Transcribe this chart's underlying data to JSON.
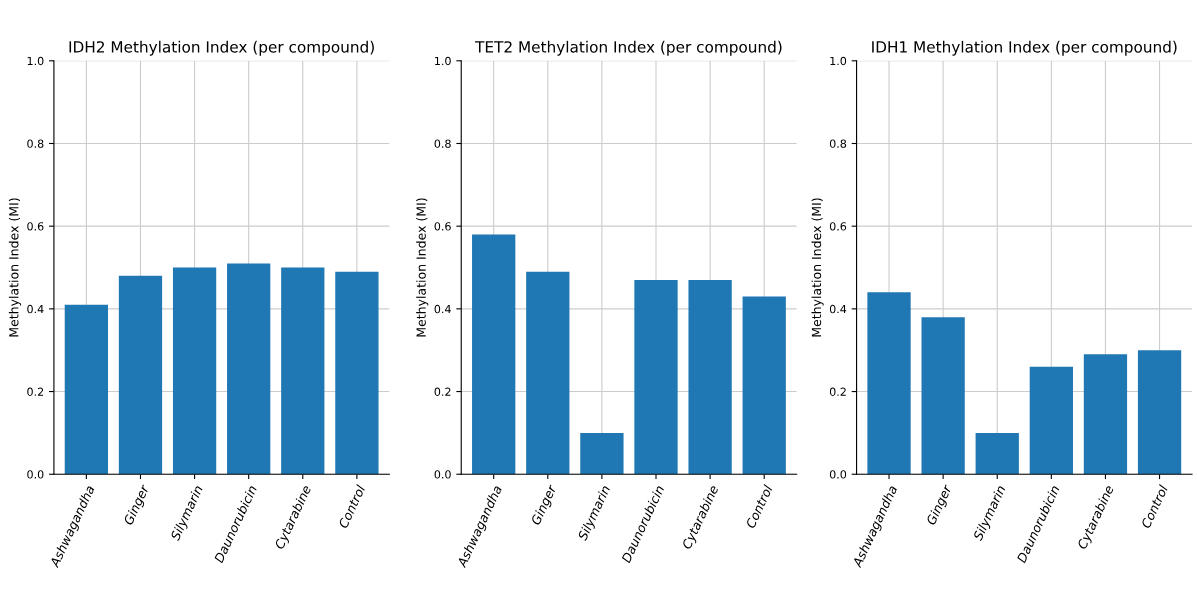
{
  "chart_data": [
    {
      "type": "bar",
      "title": "IDH2 Methylation Index (per compound)",
      "ylabel": "Methylation Index (MI)",
      "categories": [
        "Ashwagandha",
        "Ginger",
        "Silymarin",
        "Daunorubicin",
        "Cytarabine",
        "Control"
      ],
      "values": [
        0.41,
        0.48,
        0.5,
        0.51,
        0.5,
        0.49
      ],
      "color": "#1f77b4",
      "ylim": [
        0,
        1
      ],
      "yticks": [
        {
          "value": 0,
          "label": "0.0"
        },
        {
          "value": 0.2,
          "label": "0.2"
        },
        {
          "value": 0.4,
          "label": "0.4"
        },
        {
          "value": 0.6,
          "label": "0.6"
        },
        {
          "value": 0.8,
          "label": "0.8"
        },
        {
          "value": 1,
          "label": "1.0"
        }
      ],
      "grid": true
    },
    {
      "type": "bar",
      "title": "TET2 Methylation Index (per compound)",
      "ylabel": "Methylation Index (MI)",
      "categories": [
        "Ashwagandha",
        "Ginger",
        "Silymarin",
        "Daunorubicin",
        "Cytarabine",
        "Control"
      ],
      "values": [
        0.58,
        0.49,
        0.1,
        0.47,
        0.47,
        0.43
      ],
      "color": "#1f77b4",
      "ylim": [
        0,
        1
      ],
      "yticks": [
        {
          "value": 0,
          "label": "0.0"
        },
        {
          "value": 0.2,
          "label": "0.2"
        },
        {
          "value": 0.4,
          "label": "0.4"
        },
        {
          "value": 0.6,
          "label": "0.6"
        },
        {
          "value": 0.8,
          "label": "0.8"
        },
        {
          "value": 1,
          "label": "1.0"
        }
      ],
      "grid": true
    },
    {
      "type": "bar",
      "title": "IDH1 Methylation Index (per compound)",
      "ylabel": "Methylation Index (MI)",
      "categories": [
        "Ashwagandha",
        "Ginger",
        "Silymarin",
        "Daunorubicin",
        "Cytarabine",
        "Control"
      ],
      "values": [
        0.44,
        0.38,
        0.1,
        0.26,
        0.29,
        0.3
      ],
      "color": "#1f77b4",
      "ylim": [
        0,
        1
      ],
      "yticks": [
        {
          "value": 0,
          "label": "0.0"
        },
        {
          "value": 0.2,
          "label": "0.2"
        },
        {
          "value": 0.4,
          "label": "0.4"
        },
        {
          "value": 0.6,
          "label": "0.6"
        },
        {
          "value": 0.8,
          "label": "0.8"
        },
        {
          "value": 1,
          "label": "1.0"
        }
      ],
      "grid": true
    }
  ]
}
